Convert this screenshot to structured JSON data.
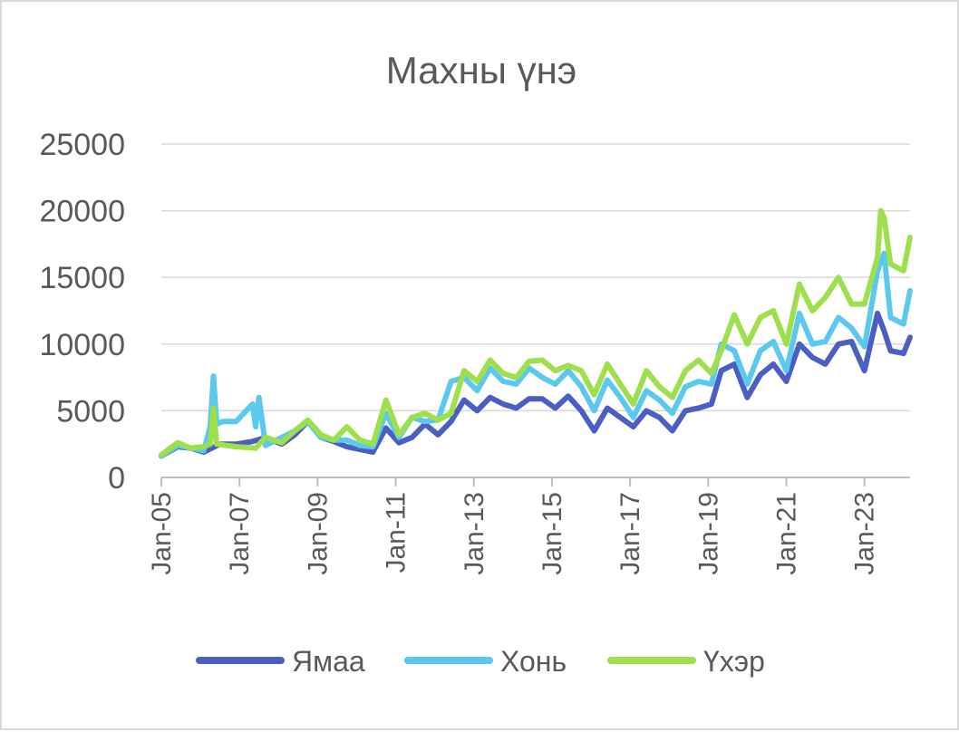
{
  "chart_data": {
    "type": "line",
    "title": "Махны үнэ",
    "xlabel": "",
    "ylabel": "",
    "ylim": [
      0,
      25000
    ],
    "yticks": [
      0,
      5000,
      10000,
      15000,
      20000,
      25000
    ],
    "ytick_labels": [
      "0",
      "5000",
      "10000",
      "15000",
      "20000",
      "25000"
    ],
    "xlim": [
      "2005-01",
      "2024-03"
    ],
    "xticks": [
      "2005-01",
      "2007-01",
      "2009-01",
      "2011-01",
      "2013-01",
      "2015-01",
      "2017-01",
      "2019-01",
      "2021-01",
      "2023-01"
    ],
    "xtick_labels": [
      "Jan-05",
      "Jan-07",
      "Jan-09",
      "Jan-11",
      "Jan-13",
      "Jan-15",
      "Jan-17",
      "Jan-19",
      "Jan-21",
      "Jan-23"
    ],
    "grid": true,
    "legend_position": "bottom",
    "series": [
      {
        "name": "Ямаа",
        "color": "#4a5fc1",
        "x": [
          "2005-01",
          "2005-06",
          "2005-10",
          "2006-02",
          "2006-07",
          "2006-12",
          "2007-05",
          "2007-09",
          "2008-02",
          "2008-06",
          "2008-10",
          "2009-02",
          "2009-06",
          "2009-10",
          "2010-02",
          "2010-06",
          "2010-10",
          "2011-02",
          "2011-06",
          "2011-10",
          "2012-02",
          "2012-06",
          "2012-10",
          "2013-02",
          "2013-06",
          "2013-10",
          "2014-02",
          "2014-06",
          "2014-10",
          "2015-02",
          "2015-06",
          "2015-10",
          "2016-02",
          "2016-06",
          "2016-10",
          "2017-02",
          "2017-06",
          "2017-10",
          "2018-02",
          "2018-06",
          "2018-10",
          "2019-02",
          "2019-05",
          "2019-09",
          "2020-01",
          "2020-05",
          "2020-09",
          "2021-01",
          "2021-05",
          "2021-09",
          "2022-01",
          "2022-05",
          "2022-09",
          "2023-01",
          "2023-05",
          "2023-07",
          "2023-09",
          "2024-01",
          "2024-03"
        ],
        "values": [
          1600,
          2300,
          2200,
          1900,
          2500,
          2500,
          2700,
          3000,
          2500,
          3200,
          4200,
          3000,
          2700,
          2300,
          2100,
          1900,
          3700,
          2600,
          3000,
          4000,
          3200,
          4200,
          5800,
          5000,
          6000,
          5500,
          5200,
          5900,
          5900,
          5200,
          6100,
          5000,
          3500,
          5200,
          4500,
          3800,
          5000,
          4500,
          3500,
          5000,
          5200,
          5500,
          8000,
          8500,
          6000,
          7700,
          8500,
          7200,
          10000,
          9000,
          8500,
          10000,
          10200,
          8000,
          12300,
          11000,
          9500,
          9300,
          10500
        ]
      },
      {
        "name": "Хонь",
        "color": "#5bc8ee",
        "x": [
          "2005-01",
          "2005-06",
          "2005-10",
          "2006-02",
          "2006-04",
          "2006-05",
          "2006-06",
          "2006-08",
          "2006-12",
          "2007-05",
          "2007-06",
          "2007-07",
          "2007-09",
          "2008-02",
          "2008-06",
          "2008-10",
          "2009-02",
          "2009-06",
          "2009-10",
          "2010-02",
          "2010-06",
          "2010-10",
          "2011-02",
          "2011-06",
          "2011-10",
          "2012-02",
          "2012-06",
          "2012-10",
          "2013-02",
          "2013-06",
          "2013-10",
          "2014-02",
          "2014-06",
          "2014-10",
          "2015-02",
          "2015-06",
          "2015-10",
          "2016-02",
          "2016-06",
          "2016-10",
          "2017-02",
          "2017-06",
          "2017-10",
          "2018-02",
          "2018-06",
          "2018-10",
          "2019-02",
          "2019-05",
          "2019-09",
          "2020-01",
          "2020-05",
          "2020-09",
          "2021-01",
          "2021-05",
          "2021-09",
          "2022-01",
          "2022-05",
          "2022-09",
          "2023-01",
          "2023-05",
          "2023-07",
          "2023-09",
          "2024-01",
          "2024-03"
        ],
        "values": [
          1600,
          2400,
          2200,
          2000,
          3800,
          7600,
          4000,
          4200,
          4200,
          5500,
          3800,
          6000,
          2400,
          3000,
          3500,
          4200,
          3000,
          2800,
          2800,
          2400,
          2300,
          4800,
          3000,
          4500,
          4200,
          4300,
          7200,
          7500,
          6500,
          8200,
          7200,
          7000,
          8200,
          7500,
          7000,
          8000,
          6800,
          5000,
          7300,
          6000,
          4500,
          6500,
          5800,
          4800,
          6800,
          7200,
          7000,
          10000,
          9500,
          7000,
          9500,
          10200,
          8000,
          12300,
          10000,
          10200,
          12000,
          11200,
          9800,
          15500,
          16800,
          12000,
          11500,
          14000
        ]
      },
      {
        "name": "Үхэр",
        "color": "#9ee04c",
        "x": [
          "2005-01",
          "2005-06",
          "2005-10",
          "2006-02",
          "2006-04",
          "2006-05",
          "2006-06",
          "2006-12",
          "2007-06",
          "2007-09",
          "2008-02",
          "2008-06",
          "2008-10",
          "2009-02",
          "2009-06",
          "2009-10",
          "2010-02",
          "2010-06",
          "2010-10",
          "2011-02",
          "2011-06",
          "2011-10",
          "2012-02",
          "2012-06",
          "2012-10",
          "2013-02",
          "2013-06",
          "2013-10",
          "2014-02",
          "2014-06",
          "2014-10",
          "2015-02",
          "2015-06",
          "2015-10",
          "2016-02",
          "2016-06",
          "2016-10",
          "2017-02",
          "2017-06",
          "2017-10",
          "2018-02",
          "2018-06",
          "2018-10",
          "2019-02",
          "2019-05",
          "2019-09",
          "2020-01",
          "2020-05",
          "2020-09",
          "2021-01",
          "2021-05",
          "2021-09",
          "2022-01",
          "2022-05",
          "2022-09",
          "2023-01",
          "2023-05",
          "2023-06",
          "2023-07",
          "2023-09",
          "2024-01",
          "2024-03"
        ],
        "values": [
          1700,
          2600,
          2200,
          2300,
          2500,
          5200,
          2500,
          2300,
          2200,
          3000,
          2600,
          3500,
          4300,
          3200,
          2800,
          3800,
          2800,
          2500,
          5800,
          3200,
          4500,
          4800,
          4300,
          4800,
          8000,
          7200,
          8800,
          7800,
          7500,
          8700,
          8800,
          8000,
          8400,
          8000,
          6200,
          8500,
          7000,
          5500,
          8000,
          6800,
          6000,
          8000,
          8800,
          7800,
          9500,
          12200,
          10000,
          12000,
          12500,
          10000,
          14500,
          12500,
          13500,
          15000,
          13000,
          13000,
          16500,
          20000,
          19500,
          16000,
          15500,
          18000
        ]
      }
    ]
  }
}
